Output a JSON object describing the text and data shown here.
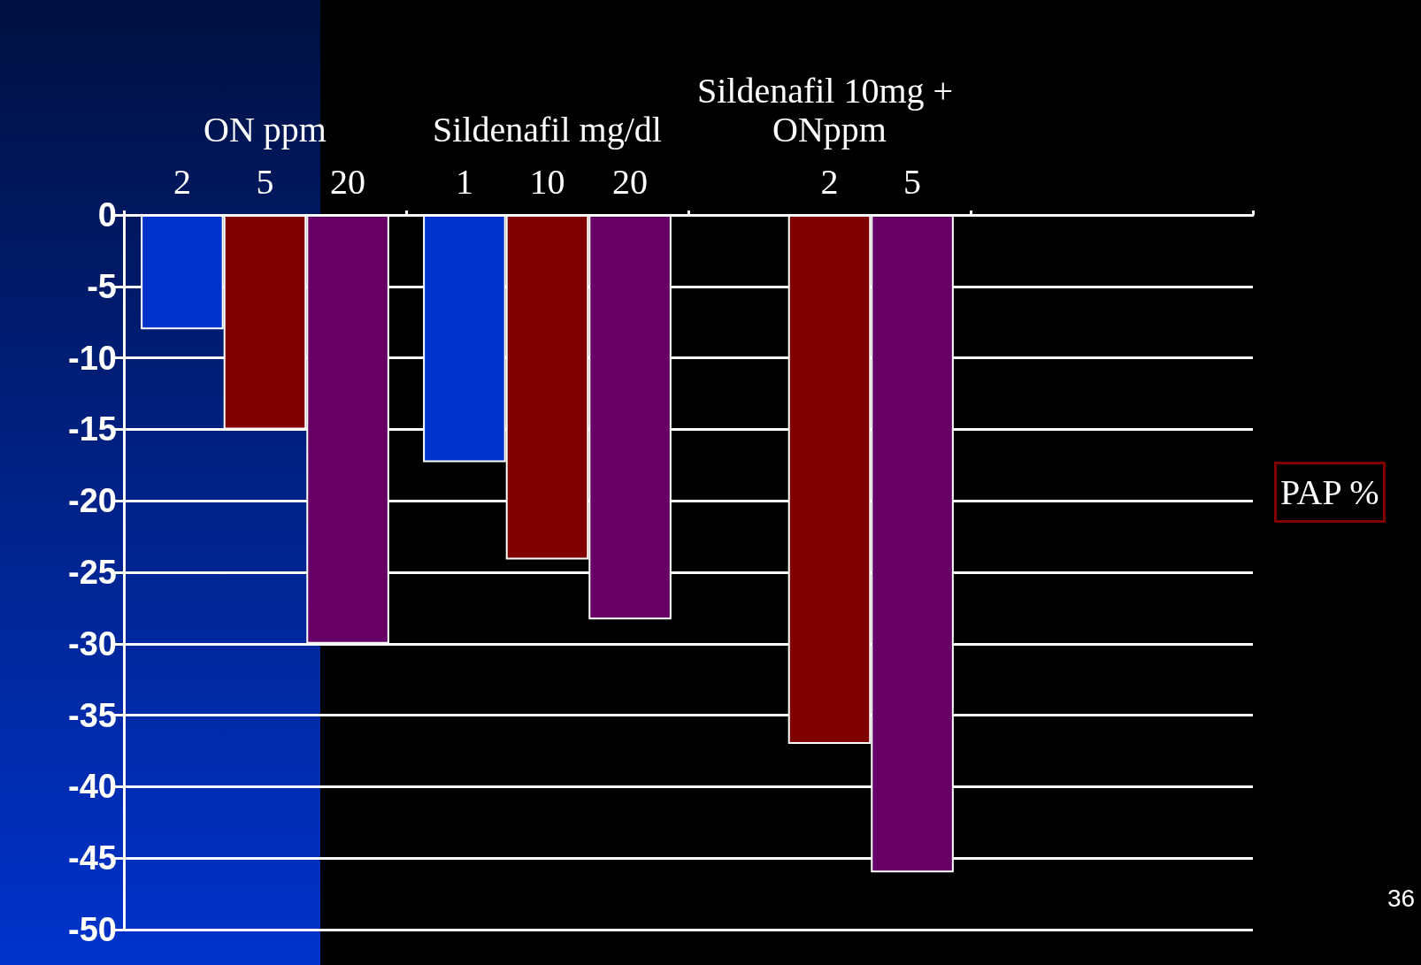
{
  "chart_data": {
    "type": "bar",
    "categories": [
      "ON ppm",
      "Sildenafil mg/dl",
      "Sildenafil 10mg + ONppm",
      null
    ],
    "series": [
      {
        "color": "#0033cc",
        "values": [
          -8,
          -17.3,
          null,
          null
        ]
      },
      {
        "color": "#800000",
        "values": [
          -15,
          -24.1,
          -37,
          null
        ]
      },
      {
        "color": "#660066",
        "values": [
          -30,
          -28.3,
          -46,
          null
        ]
      }
    ],
    "ylabel": "PAP %",
    "ylim": [
      -50,
      0
    ],
    "yticks": [
      -50,
      -45,
      -40,
      -35,
      -30,
      -25,
      -20,
      -15,
      -10,
      -5,
      0
    ],
    "grid": "y",
    "annotations": [
      "2",
      "5",
      "20",
      "1",
      "10",
      "20",
      "2",
      "5",
      "36"
    ]
  }
}
